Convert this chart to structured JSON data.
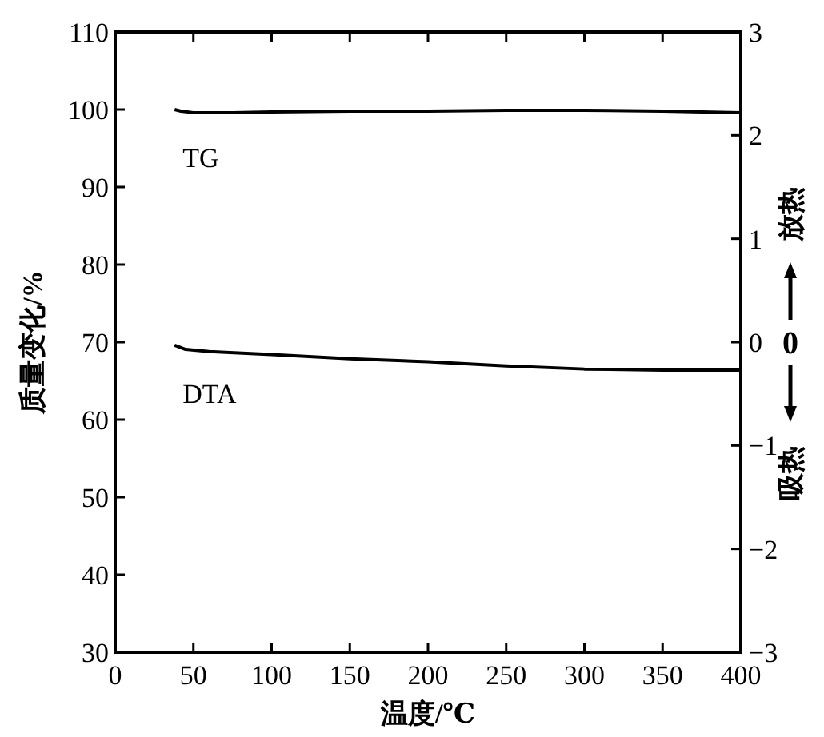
{
  "chart_data": {
    "type": "line",
    "xlabel": "温度/℃",
    "ylabel": "质量变化/%",
    "xlim": [
      0,
      400
    ],
    "xticks": [
      0,
      50,
      100,
      150,
      200,
      250,
      300,
      350,
      400
    ],
    "ylim": [
      30,
      110
    ],
    "yticks": [
      30,
      40,
      50,
      60,
      70,
      80,
      90,
      100,
      110
    ],
    "y2lim": [
      -3,
      3
    ],
    "y2ticks": [
      {
        "value": -3,
        "label": "−3"
      },
      {
        "value": -2,
        "label": "−2"
      },
      {
        "value": -1,
        "label": "−1"
      },
      0,
      1,
      2,
      3
    ],
    "series": [
      {
        "name": "TG",
        "color": "#000000",
        "x": [
          38,
          42,
          50,
          75,
          100,
          150,
          200,
          250,
          300,
          350,
          400
        ],
        "values": [
          100,
          99.8,
          99.6,
          99.6,
          99.7,
          99.8,
          99.8,
          99.9,
          99.9,
          99.8,
          99.6
        ]
      },
      {
        "name": "DTA",
        "color": "#000000",
        "axis": "y2",
        "x": [
          38,
          45,
          60,
          100,
          150,
          200,
          250,
          300,
          350,
          400
        ],
        "values": [
          -0.03,
          -0.07,
          -0.09,
          -0.12,
          -0.16,
          -0.19,
          -0.23,
          -0.26,
          -0.27,
          -0.27
        ]
      }
    ],
    "annotations": [
      "放热",
      "0",
      "吸热"
    ],
    "grid": false,
    "line_style": "solid"
  }
}
